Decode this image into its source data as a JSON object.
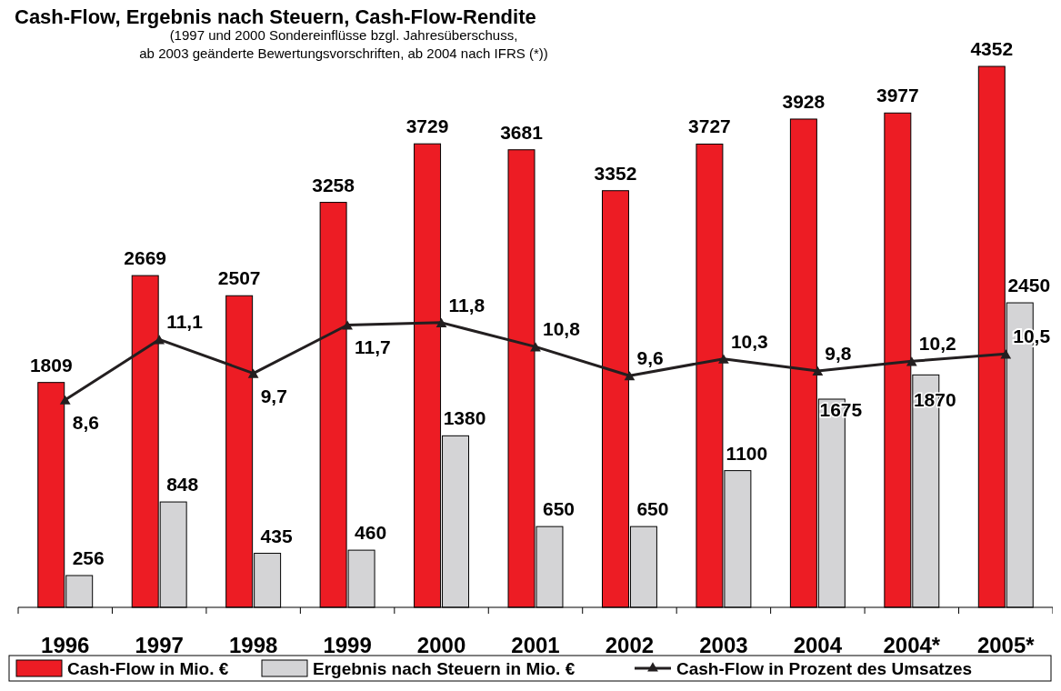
{
  "chart_data": {
    "type": "bar",
    "title": "Cash-Flow, Ergebnis nach Steuern, Cash-Flow-Rendite",
    "subtitle": "(1997 und 2000 Sondereinflüsse bzgl. Jahresüberschuss,\nab 2003 geänderte Bewertungsvorschriften, ab 2004 nach IFRS (*))",
    "categories": [
      "1996",
      "1997",
      "1998",
      "1999",
      "2000",
      "2001",
      "2002",
      "2003",
      "2004",
      "2004*",
      "2005*"
    ],
    "series": [
      {
        "name": "Cash-Flow in Mio. €",
        "color": "#ed1c24",
        "values": [
          1809,
          2669,
          2507,
          3258,
          3729,
          3681,
          3352,
          3727,
          3928,
          3977,
          4352
        ]
      },
      {
        "name": "Ergebnis nach Steuern in Mio. €",
        "color": "#d4d4d6",
        "values": [
          256,
          848,
          435,
          460,
          1380,
          650,
          650,
          1100,
          1675,
          1870,
          2450
        ]
      },
      {
        "name": "Cash-Flow in Prozent des Umsatzes",
        "color": "#231f20",
        "type": "line",
        "axis": "y2",
        "marker": "triangle",
        "values": [
          8.6,
          11.1,
          9.7,
          11.7,
          11.8,
          10.8,
          9.6,
          10.3,
          9.8,
          10.2,
          10.5
        ],
        "value_labels": [
          "8,6",
          "11,1",
          "9,7",
          "11,7",
          "11,8",
          "10,8",
          "9,6",
          "10,3",
          "9,8",
          "10,2",
          "10,5"
        ]
      }
    ],
    "data_labels": true,
    "legend": "bottom",
    "grid": false,
    "tick_labels": "x"
  }
}
